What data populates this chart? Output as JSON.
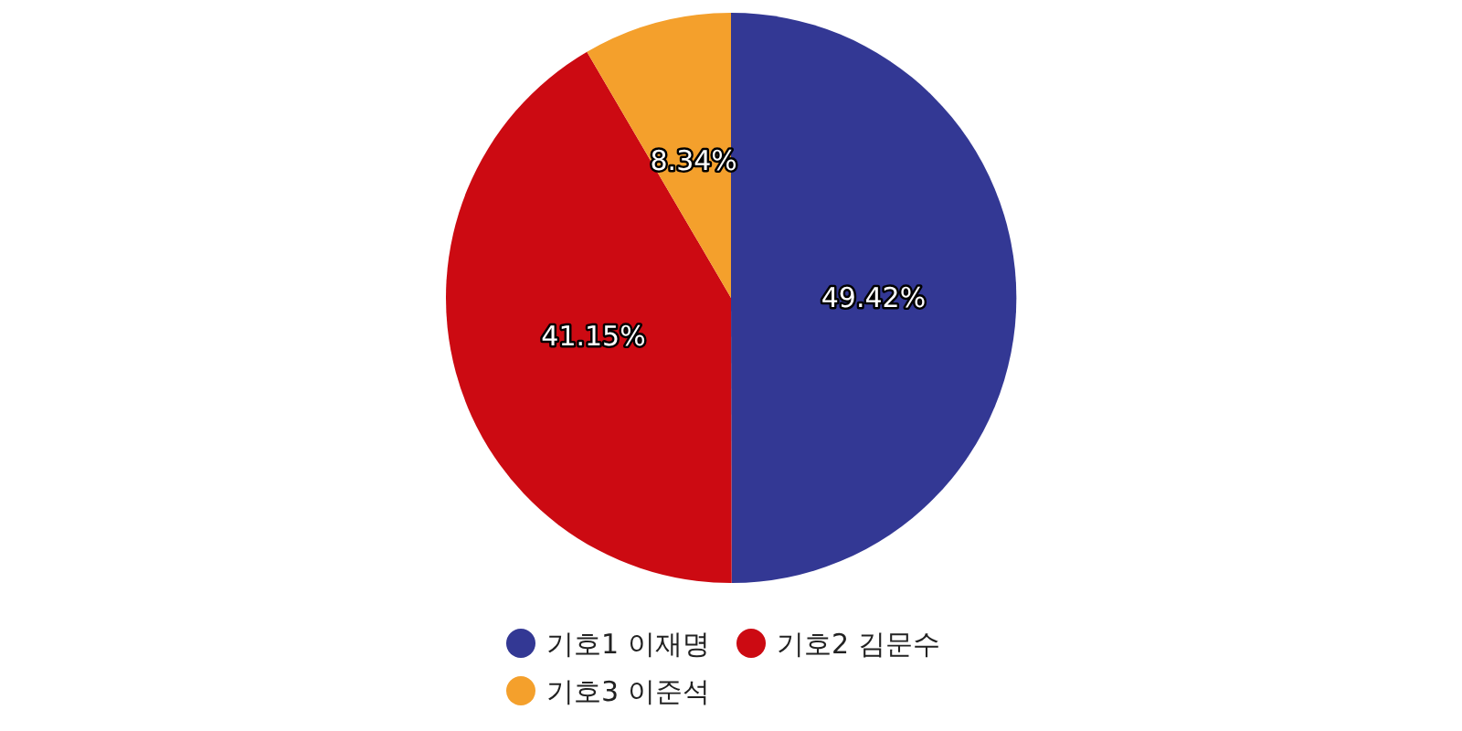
{
  "chart_data": {
    "type": "pie",
    "categories": [
      "기호1 이재명",
      "기호2 김문수",
      "기호3 이준석"
    ],
    "values": [
      49.42,
      41.15,
      8.34
    ],
    "colors": [
      "#333894",
      "#cc0a12",
      "#f4a02c"
    ],
    "value_labels": [
      "49.42%",
      "41.15%",
      "8.34%"
    ],
    "legend": "bottom"
  }
}
